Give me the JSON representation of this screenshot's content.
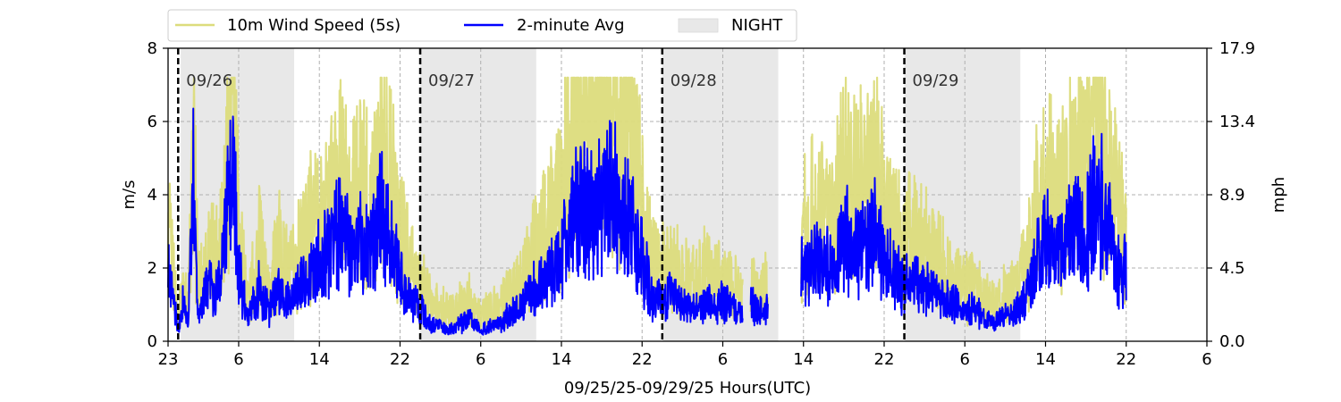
{
  "chart_data": {
    "type": "line",
    "x_axis": {
      "label": "09/25/25-09/29/25  Hours(UTC)",
      "unit": "hours UTC",
      "start": "2025-09-25T23:00Z",
      "end": "2025-09-30T06:00Z",
      "ticks": [
        {
          "time": "2025-09-25T23:00Z",
          "label": "23"
        },
        {
          "time": "2025-09-26T06:00Z",
          "label": "6"
        },
        {
          "time": "2025-09-26T14:00Z",
          "label": "14"
        },
        {
          "time": "2025-09-26T22:00Z",
          "label": "22"
        },
        {
          "time": "2025-09-27T06:00Z",
          "label": "6"
        },
        {
          "time": "2025-09-27T14:00Z",
          "label": "14"
        },
        {
          "time": "2025-09-27T22:00Z",
          "label": "22"
        },
        {
          "time": "2025-09-28T06:00Z",
          "label": "6"
        },
        {
          "time": "2025-09-28T14:00Z",
          "label": "14"
        },
        {
          "time": "2025-09-28T22:00Z",
          "label": "22"
        },
        {
          "time": "2025-09-29T06:00Z",
          "label": "6"
        },
        {
          "time": "2025-09-29T14:00Z",
          "label": "14"
        },
        {
          "time": "2025-09-29T22:00Z",
          "label": "22"
        },
        {
          "time": "2025-09-30T06:00Z",
          "label": "6"
        }
      ]
    },
    "y_axis_left": {
      "label": "m/s",
      "ylim": [
        0,
        8
      ],
      "ticks": [
        0,
        2,
        4,
        6,
        8
      ]
    },
    "y_axis_right": {
      "label": "mph",
      "ticks": [
        "0.0",
        "4.5",
        "8.9",
        "13.4",
        "17.9"
      ]
    },
    "grid": true,
    "legend": {
      "placement": "above-left",
      "entries": [
        {
          "label": "10m Wind Speed (5s)",
          "color": "#dcdc7c",
          "kind": "line"
        },
        {
          "label": "2-minute Avg",
          "color": "#0000ff",
          "kind": "line"
        },
        {
          "label": "NIGHT",
          "color": "#e8e8e8",
          "kind": "patch"
        }
      ]
    },
    "day_markers": [
      {
        "time": "2025-09-26T00:00Z",
        "label": "09/26"
      },
      {
        "time": "2025-09-27T00:00Z",
        "label": "09/27"
      },
      {
        "time": "2025-09-28T00:00Z",
        "label": "09/28"
      },
      {
        "time": "2025-09-29T00:00Z",
        "label": "09/29"
      }
    ],
    "night_periods": [
      {
        "start": "2025-09-26T00:15Z",
        "end": "2025-09-26T11:30Z"
      },
      {
        "start": "2025-09-27T00:00Z",
        "end": "2025-09-27T11:30Z"
      },
      {
        "start": "2025-09-28T00:00Z",
        "end": "2025-09-28T11:30Z"
      },
      {
        "start": "2025-09-29T00:00Z",
        "end": "2025-09-29T11:30Z"
      }
    ],
    "data_gaps": [
      {
        "start": "2025-09-28T08:00Z",
        "end": "2025-09-28T08:45Z"
      },
      {
        "start": "2025-09-28T10:30Z",
        "end": "2025-09-28T13:45Z"
      }
    ],
    "data_end": "2025-09-29T22:00Z",
    "series": [
      {
        "name": "10m Wind Speed (5s)",
        "color": "#dcdc7c",
        "values": [
          [
            "2025-09-25T23:00Z",
            2.9
          ],
          [
            "2025-09-25T23:30Z",
            1.9
          ],
          [
            "2025-09-26T00:00Z",
            0.6
          ],
          [
            "2025-09-26T00:30Z",
            1.6
          ],
          [
            "2025-09-26T01:00Z",
            0.8
          ],
          [
            "2025-09-26T01:30Z",
            5.4
          ],
          [
            "2025-09-26T02:00Z",
            1.4
          ],
          [
            "2025-09-26T03:00Z",
            2.3
          ],
          [
            "2025-09-26T04:00Z",
            2.6
          ],
          [
            "2025-09-26T05:00Z",
            5.2
          ],
          [
            "2025-09-26T05:30Z",
            6.9
          ],
          [
            "2025-09-26T06:00Z",
            2.8
          ],
          [
            "2025-09-26T07:00Z",
            1.2
          ],
          [
            "2025-09-26T08:00Z",
            2.7
          ],
          [
            "2025-09-26T09:00Z",
            1.4
          ],
          [
            "2025-09-26T10:00Z",
            2.6
          ],
          [
            "2025-09-26T11:00Z",
            1.8
          ],
          [
            "2025-09-26T12:00Z",
            2.3
          ],
          [
            "2025-09-26T13:00Z",
            3.2
          ],
          [
            "2025-09-26T14:00Z",
            3.4
          ],
          [
            "2025-09-26T15:00Z",
            3.7
          ],
          [
            "2025-09-26T16:00Z",
            4.8
          ],
          [
            "2025-09-26T17:00Z",
            3.6
          ],
          [
            "2025-09-26T18:00Z",
            4.1
          ],
          [
            "2025-09-26T19:00Z",
            3.8
          ],
          [
            "2025-09-26T20:00Z",
            5.3
          ],
          [
            "2025-09-26T21:00Z",
            4.3
          ],
          [
            "2025-09-26T22:00Z",
            3.2
          ],
          [
            "2025-09-26T23:00Z",
            2.1
          ],
          [
            "2025-09-27T00:00Z",
            1.6
          ],
          [
            "2025-09-27T01:00Z",
            1.1
          ],
          [
            "2025-09-27T02:00Z",
            0.9
          ],
          [
            "2025-09-27T03:00Z",
            0.8
          ],
          [
            "2025-09-27T04:00Z",
            1.0
          ],
          [
            "2025-09-27T05:00Z",
            1.2
          ],
          [
            "2025-09-27T06:00Z",
            0.7
          ],
          [
            "2025-09-27T07:00Z",
            0.9
          ],
          [
            "2025-09-27T08:00Z",
            1.0
          ],
          [
            "2025-09-27T09:00Z",
            1.4
          ],
          [
            "2025-09-27T10:00Z",
            1.6
          ],
          [
            "2025-09-27T11:00Z",
            2.4
          ],
          [
            "2025-09-27T12:00Z",
            2.7
          ],
          [
            "2025-09-27T13:00Z",
            3.3
          ],
          [
            "2025-09-27T14:00Z",
            4.1
          ],
          [
            "2025-09-27T15:00Z",
            5.5
          ],
          [
            "2025-09-27T16:00Z",
            6.4
          ],
          [
            "2025-09-27T17:00Z",
            5.7
          ],
          [
            "2025-09-27T18:00Z",
            6.2
          ],
          [
            "2025-09-27T19:00Z",
            6.9
          ],
          [
            "2025-09-27T20:00Z",
            6.3
          ],
          [
            "2025-09-27T21:00Z",
            5.5
          ],
          [
            "2025-09-27T22:00Z",
            3.6
          ],
          [
            "2025-09-27T23:00Z",
            2.1
          ],
          [
            "2025-09-28T00:00Z",
            1.9
          ],
          [
            "2025-09-28T01:00Z",
            2.2
          ],
          [
            "2025-09-28T02:00Z",
            1.8
          ],
          [
            "2025-09-28T03:00Z",
            1.6
          ],
          [
            "2025-09-28T04:00Z",
            1.9
          ],
          [
            "2025-09-28T05:00Z",
            1.7
          ],
          [
            "2025-09-28T06:00Z",
            1.8
          ],
          [
            "2025-09-28T07:00Z",
            1.5
          ],
          [
            "2025-09-28T08:00Z",
            1.4
          ],
          [
            "2025-09-28T09:00Z",
            1.6
          ],
          [
            "2025-09-28T10:00Z",
            1.4
          ],
          [
            "2025-09-28T14:00Z",
            3.2
          ],
          [
            "2025-09-28T15:00Z",
            3.8
          ],
          [
            "2025-09-28T16:00Z",
            3.5
          ],
          [
            "2025-09-28T17:00Z",
            3.4
          ],
          [
            "2025-09-28T18:00Z",
            4.6
          ],
          [
            "2025-09-28T19:00Z",
            4.2
          ],
          [
            "2025-09-28T20:00Z",
            4.3
          ],
          [
            "2025-09-28T21:00Z",
            4.9
          ],
          [
            "2025-09-28T22:00Z",
            3.8
          ],
          [
            "2025-09-28T23:00Z",
            3.1
          ],
          [
            "2025-09-29T00:00Z",
            2.6
          ],
          [
            "2025-09-29T01:00Z",
            2.9
          ],
          [
            "2025-09-29T02:00Z",
            2.6
          ],
          [
            "2025-09-29T03:00Z",
            2.5
          ],
          [
            "2025-09-29T04:00Z",
            1.9
          ],
          [
            "2025-09-29T05:00Z",
            1.7
          ],
          [
            "2025-09-29T06:00Z",
            1.5
          ],
          [
            "2025-09-29T07:00Z",
            1.6
          ],
          [
            "2025-09-29T08:00Z",
            1.1
          ],
          [
            "2025-09-29T09:00Z",
            1.0
          ],
          [
            "2025-09-29T10:00Z",
            1.3
          ],
          [
            "2025-09-29T11:00Z",
            1.4
          ],
          [
            "2025-09-29T12:00Z",
            2.1
          ],
          [
            "2025-09-29T13:00Z",
            3.4
          ],
          [
            "2025-09-29T14:00Z",
            4.5
          ],
          [
            "2025-09-29T15:00Z",
            3.6
          ],
          [
            "2025-09-29T16:00Z",
            4.1
          ],
          [
            "2025-09-29T17:00Z",
            5.2
          ],
          [
            "2025-09-29T18:00Z",
            4.6
          ],
          [
            "2025-09-29T19:00Z",
            6.9
          ],
          [
            "2025-09-29T20:00Z",
            5.3
          ],
          [
            "2025-09-29T21:00Z",
            3.8
          ],
          [
            "2025-09-29T22:00Z",
            2.9
          ]
        ]
      },
      {
        "name": "2-minute Avg",
        "color": "#0000ff",
        "values": [
          [
            "2025-09-25T23:00Z",
            1.8
          ],
          [
            "2025-09-25T23:30Z",
            1.3
          ],
          [
            "2025-09-26T00:00Z",
            0.3
          ],
          [
            "2025-09-26T00:30Z",
            1.0
          ],
          [
            "2025-09-26T01:00Z",
            0.5
          ],
          [
            "2025-09-26T01:30Z",
            4.5
          ],
          [
            "2025-09-26T02:00Z",
            0.6
          ],
          [
            "2025-09-26T03:00Z",
            1.6
          ],
          [
            "2025-09-26T04:00Z",
            1.5
          ],
          [
            "2025-09-26T05:00Z",
            3.6
          ],
          [
            "2025-09-26T05:30Z",
            5.1
          ],
          [
            "2025-09-26T06:00Z",
            1.9
          ],
          [
            "2025-09-26T07:00Z",
            0.6
          ],
          [
            "2025-09-26T08:00Z",
            1.4
          ],
          [
            "2025-09-26T09:00Z",
            0.8
          ],
          [
            "2025-09-26T10:00Z",
            1.5
          ],
          [
            "2025-09-26T11:00Z",
            1.0
          ],
          [
            "2025-09-26T12:00Z",
            1.4
          ],
          [
            "2025-09-26T13:00Z",
            1.7
          ],
          [
            "2025-09-26T14:00Z",
            2.2
          ],
          [
            "2025-09-26T15:00Z",
            2.4
          ],
          [
            "2025-09-26T16:00Z",
            3.2
          ],
          [
            "2025-09-26T17:00Z",
            2.4
          ],
          [
            "2025-09-26T18:00Z",
            2.7
          ],
          [
            "2025-09-26T19:00Z",
            2.5
          ],
          [
            "2025-09-26T20:00Z",
            3.5
          ],
          [
            "2025-09-26T21:00Z",
            2.6
          ],
          [
            "2025-09-26T22:00Z",
            1.9
          ],
          [
            "2025-09-26T23:00Z",
            1.2
          ],
          [
            "2025-09-27T00:00Z",
            0.9
          ],
          [
            "2025-09-27T01:00Z",
            0.5
          ],
          [
            "2025-09-27T02:00Z",
            0.4
          ],
          [
            "2025-09-27T03:00Z",
            0.3
          ],
          [
            "2025-09-27T04:00Z",
            0.5
          ],
          [
            "2025-09-27T05:00Z",
            0.6
          ],
          [
            "2025-09-27T06:00Z",
            0.3
          ],
          [
            "2025-09-27T07:00Z",
            0.4
          ],
          [
            "2025-09-27T08:00Z",
            0.5
          ],
          [
            "2025-09-27T09:00Z",
            0.8
          ],
          [
            "2025-09-27T10:00Z",
            0.9
          ],
          [
            "2025-09-27T11:00Z",
            1.4
          ],
          [
            "2025-09-27T12:00Z",
            1.6
          ],
          [
            "2025-09-27T13:00Z",
            1.9
          ],
          [
            "2025-09-27T14:00Z",
            2.4
          ],
          [
            "2025-09-27T15:00Z",
            3.3
          ],
          [
            "2025-09-27T16:00Z",
            3.8
          ],
          [
            "2025-09-27T17:00Z",
            3.3
          ],
          [
            "2025-09-27T18:00Z",
            3.7
          ],
          [
            "2025-09-27T19:00Z",
            4.2
          ],
          [
            "2025-09-27T20:00Z",
            3.5
          ],
          [
            "2025-09-27T21:00Z",
            3.2
          ],
          [
            "2025-09-27T22:00Z",
            2.1
          ],
          [
            "2025-09-27T23:00Z",
            1.3
          ],
          [
            "2025-09-28T00:00Z",
            1.1
          ],
          [
            "2025-09-28T01:00Z",
            1.3
          ],
          [
            "2025-09-28T02:00Z",
            1.0
          ],
          [
            "2025-09-28T03:00Z",
            0.9
          ],
          [
            "2025-09-28T04:00Z",
            1.1
          ],
          [
            "2025-09-28T05:00Z",
            1.0
          ],
          [
            "2025-09-28T06:00Z",
            1.1
          ],
          [
            "2025-09-28T07:00Z",
            0.9
          ],
          [
            "2025-09-28T08:00Z",
            0.8
          ],
          [
            "2025-09-28T09:00Z",
            1.0
          ],
          [
            "2025-09-28T10:00Z",
            0.8
          ],
          [
            "2025-09-28T14:00Z",
            1.9
          ],
          [
            "2025-09-28T15:00Z",
            2.2
          ],
          [
            "2025-09-28T16:00Z",
            2.1
          ],
          [
            "2025-09-28T17:00Z",
            2.0
          ],
          [
            "2025-09-28T18:00Z",
            2.8
          ],
          [
            "2025-09-28T19:00Z",
            2.6
          ],
          [
            "2025-09-28T20:00Z",
            2.5
          ],
          [
            "2025-09-28T21:00Z",
            3.0
          ],
          [
            "2025-09-28T22:00Z",
            2.3
          ],
          [
            "2025-09-28T23:00Z",
            1.8
          ],
          [
            "2025-09-29T00:00Z",
            1.5
          ],
          [
            "2025-09-29T01:00Z",
            1.7
          ],
          [
            "2025-09-29T02:00Z",
            1.5
          ],
          [
            "2025-09-29T03:00Z",
            1.4
          ],
          [
            "2025-09-29T04:00Z",
            1.1
          ],
          [
            "2025-09-29T05:00Z",
            1.0
          ],
          [
            "2025-09-29T06:00Z",
            0.8
          ],
          [
            "2025-09-29T07:00Z",
            0.9
          ],
          [
            "2025-09-29T08:00Z",
            0.6
          ],
          [
            "2025-09-29T09:00Z",
            0.5
          ],
          [
            "2025-09-29T10:00Z",
            0.7
          ],
          [
            "2025-09-29T11:00Z",
            0.8
          ],
          [
            "2025-09-29T12:00Z",
            1.2
          ],
          [
            "2025-09-29T13:00Z",
            2.1
          ],
          [
            "2025-09-29T14:00Z",
            2.8
          ],
          [
            "2025-09-29T15:00Z",
            2.2
          ],
          [
            "2025-09-29T16:00Z",
            2.5
          ],
          [
            "2025-09-29T17:00Z",
            3.1
          ],
          [
            "2025-09-29T18:00Z",
            2.7
          ],
          [
            "2025-09-29T19:00Z",
            4.5
          ],
          [
            "2025-09-29T20:00Z",
            3.2
          ],
          [
            "2025-09-29T21:00Z",
            2.3
          ],
          [
            "2025-09-29T22:00Z",
            1.9
          ]
        ]
      }
    ]
  }
}
